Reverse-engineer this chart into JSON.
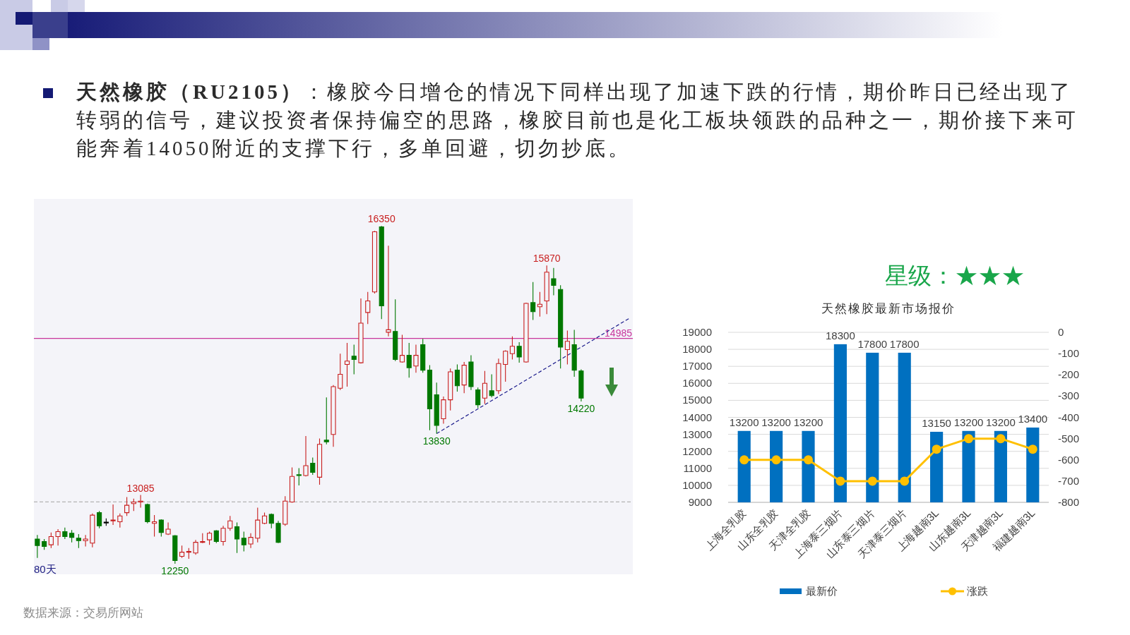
{
  "chart_data": [
    {
      "type": "other",
      "title": "**天然橡胶（RU2105）**：橡胶今日增仓的情况下同样出现了加速下跌的行情，期价昨日已经出现了转弱的信号，建议投资者保持偏空的思路，橡胶目前也是化工板块领跌的品种之一，期价接下来可能奔着14050附近的支撑下行，多单回避，切勿抄底。"
    },
    {
      "type": "candlestick",
      "categories": [
        null,
        null,
        null,
        null,
        null,
        null,
        null,
        null,
        null,
        null,
        null,
        null,
        null,
        null,
        null,
        null,
        null,
        null,
        null,
        null,
        null,
        null,
        null,
        null,
        null,
        null,
        null,
        null,
        null,
        null,
        null,
        null,
        null,
        null,
        null,
        null,
        null,
        null,
        null,
        null,
        null,
        null,
        null,
        null,
        null,
        null,
        null,
        null,
        null,
        null,
        null,
        null,
        null,
        null,
        null,
        null,
        null,
        null,
        null,
        null,
        null,
        null,
        null,
        null,
        null,
        null,
        null,
        null,
        null,
        null,
        null,
        null,
        null,
        null,
        null,
        null,
        null,
        null,
        null,
        null,
        null,
        null,
        null,
        null,
        null,
        null,
        null
      ],
      "ohlc": [
        [
          12550,
          12600,
          12320,
          12470
        ],
        [
          12520,
          12550,
          12420,
          12460
        ],
        [
          12480,
          12630,
          12440,
          12580
        ],
        [
          12580,
          12670,
          12470,
          12640
        ],
        [
          12640,
          12690,
          12550,
          12580
        ],
        [
          12620,
          12660,
          12510,
          12570
        ],
        [
          12560,
          12610,
          12440,
          12530
        ],
        [
          12530,
          12600,
          12460,
          12550
        ],
        [
          12500,
          12860,
          12450,
          12840
        ],
        [
          12870,
          12890,
          12680,
          12710
        ],
        [
          12750,
          12800,
          12710,
          12750
        ],
        [
          12770,
          12970,
          12720,
          12780
        ],
        [
          12760,
          12860,
          12690,
          12830
        ],
        [
          12870,
          13060,
          12830,
          12960
        ],
        [
          12980,
          13040,
          12890,
          13000
        ],
        [
          13000,
          13085,
          12930,
          13010
        ],
        [
          12970,
          12980,
          12740,
          12760
        ],
        [
          12740,
          12840,
          12580,
          12760
        ],
        [
          12780,
          12790,
          12580,
          12630
        ],
        [
          12610,
          12750,
          12600,
          12670
        ],
        [
          12590,
          12600,
          12250,
          12290
        ],
        [
          12340,
          12470,
          12320,
          12390
        ],
        [
          12390,
          12440,
          12310,
          12400
        ],
        [
          12380,
          12540,
          12360,
          12510
        ],
        [
          12510,
          12620,
          12500,
          12520
        ],
        [
          12540,
          12640,
          12480,
          12620
        ],
        [
          12650,
          12660,
          12500,
          12520
        ],
        [
          12520,
          12710,
          12470,
          12680
        ],
        [
          12680,
          12830,
          12650,
          12770
        ],
        [
          12700,
          12750,
          12380,
          12550
        ],
        [
          12560,
          12640,
          12400,
          12480
        ],
        [
          12490,
          12620,
          12440,
          12570
        ],
        [
          12560,
          12930,
          12510,
          12780
        ],
        [
          12740,
          12870,
          12730,
          12830
        ],
        [
          12850,
          12860,
          12680,
          12740
        ],
        [
          12740,
          12770,
          12500,
          12510
        ],
        [
          12730,
          13070,
          12710,
          13010
        ],
        [
          13000,
          13420,
          12990,
          13310
        ],
        [
          13330,
          13410,
          13200,
          13320
        ],
        [
          13320,
          13800,
          13310,
          13440
        ],
        [
          13470,
          13540,
          13330,
          13360
        ],
        [
          13300,
          13770,
          13210,
          13700
        ],
        [
          13750,
          14270,
          13700,
          13730
        ],
        [
          13820,
          14420,
          13670,
          14400
        ],
        [
          14380,
          14800,
          14360,
          14550
        ],
        [
          14670,
          14930,
          14400,
          14710
        ],
        [
          14770,
          14910,
          14550,
          14730
        ],
        [
          14690,
          15470,
          14680,
          15170
        ],
        [
          15300,
          15550,
          15160,
          15440
        ],
        [
          15550,
          16290,
          15530,
          16280
        ],
        [
          16340,
          16350,
          15220,
          15380
        ],
        [
          15060,
          16110,
          15010,
          15090
        ],
        [
          15070,
          15460,
          14710,
          14730
        ],
        [
          14700,
          15030,
          14690,
          14780
        ],
        [
          14780,
          14930,
          14510,
          14630
        ],
        [
          14650,
          14910,
          14570,
          14780
        ],
        [
          14910,
          14980,
          14570,
          14600
        ],
        [
          14600,
          14660,
          13870,
          14130
        ],
        [
          14300,
          14450,
          13830,
          13930
        ],
        [
          14010,
          14280,
          13950,
          14240
        ],
        [
          14240,
          14620,
          14110,
          14580
        ],
        [
          14600,
          14670,
          14340,
          14410
        ],
        [
          14420,
          14700,
          14320,
          14660
        ],
        [
          14700,
          14780,
          14360,
          14400
        ],
        [
          14360,
          14390,
          14140,
          14180
        ],
        [
          14260,
          14590,
          14190,
          14440
        ],
        [
          14350,
          14550,
          14270,
          14290
        ],
        [
          14350,
          14740,
          14310,
          14680
        ],
        [
          14670,
          14840,
          14460,
          14830
        ],
        [
          14800,
          15010,
          14730,
          14890
        ],
        [
          14890,
          14940,
          14690,
          14760
        ],
        [
          14700,
          15420,
          14690,
          15410
        ],
        [
          15420,
          15670,
          15210,
          15310
        ],
        [
          15370,
          15550,
          15250,
          15400
        ],
        [
          15440,
          15870,
          15280,
          15790
        ],
        [
          15710,
          15840,
          15510,
          15630
        ],
        [
          15580,
          15630,
          14620,
          14880
        ],
        [
          14850,
          15080,
          14670,
          14950
        ],
        [
          14910,
          15090,
          14520,
          14600
        ],
        [
          14590,
          14610,
          14220,
          14260
        ],
        null,
        null,
        null,
        null,
        null,
        null,
        null
      ],
      "colors": [
        "#007800",
        "#007800",
        "#c81e1e",
        "#c81e1e",
        "#007800",
        "#007800",
        "#007800",
        "#c81e1e",
        "#c81e1e",
        "#007800",
        "#000000",
        "#c81e1e",
        "#c81e1e",
        "#c81e1e",
        "#c81e1e",
        "#c81e1e",
        "#007800",
        "#c81e1e",
        "#007800",
        "#c81e1e",
        "#007800",
        "#c81e1e",
        "#c81e1e",
        "#c81e1e",
        "#c81e1e",
        "#c81e1e",
        "#007800",
        "#c81e1e",
        "#c81e1e",
        "#007800",
        "#007800",
        "#c81e1e",
        "#c81e1e",
        "#c81e1e",
        "#007800",
        "#007800",
        "#c81e1e",
        "#c81e1e",
        "#007800",
        "#c81e1e",
        "#007800",
        "#c81e1e",
        "#007800",
        "#c81e1e",
        "#c81e1e",
        "#c81e1e",
        "#007800",
        "#c81e1e",
        "#c81e1e",
        "#c81e1e",
        "#007800",
        "#c81e1e",
        "#007800",
        "#c81e1e",
        "#007800",
        "#c81e1e",
        "#007800",
        "#007800",
        "#007800",
        "#c81e1e",
        "#c81e1e",
        "#007800",
        "#c81e1e",
        "#007800",
        "#007800",
        "#c81e1e",
        "#007800",
        "#c81e1e",
        "#c81e1e",
        "#c81e1e",
        "#007800",
        "#c81e1e",
        "#007800",
        "#c81e1e",
        "#c81e1e",
        "#007800",
        "#007800",
        "#c81e1e",
        "#007800",
        "#007800",
        null,
        null,
        null,
        null,
        null,
        null,
        null
      ],
      "series": [
        {
          "type": "line",
          "color": "#1c1c8c",
          "line_style": "dashed",
          "values": [
            null,
            null,
            null,
            null,
            null,
            null,
            null,
            null,
            null,
            null,
            null,
            null,
            null,
            null,
            null,
            null,
            null,
            null,
            null,
            null,
            null,
            null,
            null,
            null,
            null,
            null,
            null,
            null,
            null,
            null,
            null,
            null,
            null,
            null,
            null,
            null,
            null,
            null,
            null,
            null,
            null,
            null,
            null,
            null,
            null,
            null,
            null,
            null,
            null,
            null,
            null,
            null,
            null,
            null,
            null,
            null,
            null,
            null,
            13830,
            null,
            null,
            null,
            null,
            null,
            null,
            null,
            null,
            null,
            null,
            null,
            null,
            null,
            null,
            null,
            null,
            null,
            null,
            null,
            null,
            null,
            null,
            null,
            null,
            null,
            null,
            null,
            15230
          ]
        }
      ],
      "ref_lines": [
        {
          "axis": "y",
          "value": 14985,
          "label": "14985",
          "color": "#c8359c"
        },
        {
          "axis": "y",
          "value": 13000,
          "color": "#b4b4b4",
          "line_style": "dashed"
        }
      ],
      "annotations": [
        {
          "text": "16350",
          "y": 16350
        },
        {
          "text": "15870",
          "y": 15870
        },
        {
          "text": "13085",
          "y": 13085
        },
        {
          "text": "13830",
          "y": 13830
        },
        {
          "text": "12250",
          "y": 12250
        },
        {
          "text": "14220",
          "y": 14220
        },
        "80天",
        "数据来源：交易所网站"
      ]
    },
    {
      "type": "bar",
      "title": "天然橡胶最新市场报价",
      "categories": [
        "上海全乳胶",
        "山东全乳胶",
        "天津全乳胶",
        "上海泰三烟片",
        "山东泰三烟片",
        "天津泰三烟片",
        "上海越南3L",
        "山东越南3L",
        "天津越南3L",
        "福建越南3L"
      ],
      "series": [
        {
          "name": "最新价",
          "type": "bar",
          "color": "#0070c0",
          "values": [
            13200,
            13200,
            13200,
            18300,
            17800,
            17800,
            13150,
            13200,
            13200,
            13400
          ],
          "value_labels": [
            "13200",
            "13200",
            "13200",
            "18300",
            "17800",
            "17800",
            "13150",
            "13200",
            "13200",
            "13400"
          ]
        },
        {
          "name": "涨跌",
          "type": "line",
          "axis": "y2",
          "color": "#ffc000",
          "marker": "circle",
          "values": [
            -600,
            -600,
            -600,
            -700,
            -700,
            -700,
            -550,
            -500,
            -500,
            -550
          ]
        }
      ],
      "ylim": [
        9000,
        19000
      ],
      "yticks": [
        9000,
        10000,
        11000,
        12000,
        13000,
        14000,
        15000,
        16000,
        17000,
        18000,
        19000
      ],
      "y2lim": [
        -800,
        0
      ],
      "y2ticks": [
        -800,
        -700,
        -600,
        -500,
        -400,
        -300,
        -200,
        -100,
        0
      ],
      "grid": "y",
      "legend": "bottom",
      "annotations": [
        "星级：★★★"
      ]
    }
  ]
}
